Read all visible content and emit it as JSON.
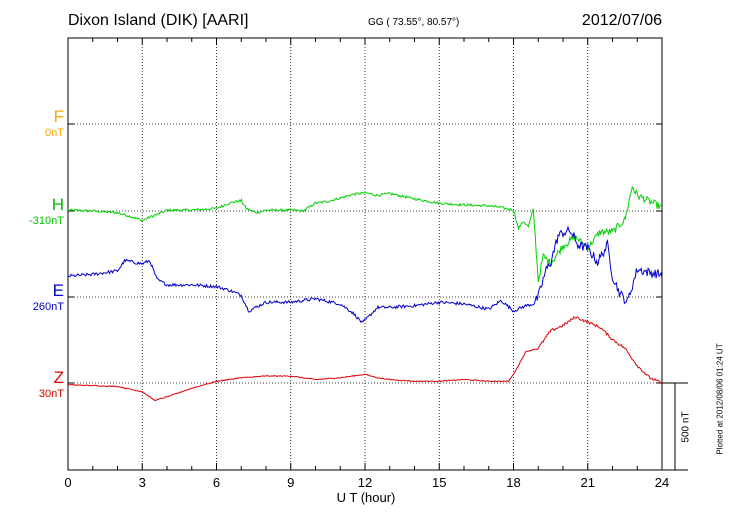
{
  "header": {
    "title": "Dixon Island (DIK)  [AARI]",
    "coords": "GG ( 73.55°,  80.57°)",
    "date": "2012/07/06"
  },
  "components": [
    {
      "letter": "F",
      "baseline": "0nT",
      "color": "#ffa500"
    },
    {
      "letter": "H",
      "baseline": "-310nT",
      "color": "#00c000"
    },
    {
      "letter": "E",
      "baseline": "260nT",
      "color": "#0000cc"
    },
    {
      "letter": "Z",
      "baseline": "30nT",
      "color": "#dd0000"
    }
  ],
  "scale_bar": {
    "label": "500 nT",
    "value_nT": 500
  },
  "plotted": "Plotted at 2012/08/06 01:24 UT",
  "chart_data": {
    "type": "line",
    "title": "Dixon Island (DIK)  [AARI]",
    "xlabel": "U T (hour)",
    "xlim": [
      0,
      24
    ],
    "xticks": [
      "0",
      "3",
      "6",
      "9",
      "12",
      "15",
      "18",
      "21",
      "24"
    ],
    "grid": true,
    "y_unit": "nT (deviation from baseline)",
    "series": [
      {
        "name": "H",
        "baseline": "-310nT",
        "color": "#00d000",
        "x": [
          0,
          1,
          2,
          2.5,
          3,
          3.3,
          3.6,
          4,
          5,
          6,
          6.5,
          7,
          7.2,
          7.6,
          8,
          9,
          9.5,
          10,
          10.5,
          11,
          11.5,
          12,
          12.5,
          13,
          13.5,
          14,
          15,
          16,
          17,
          17.5,
          18,
          18.2,
          18.4,
          18.6,
          18.8,
          19,
          19.2,
          19.5,
          20,
          20.5,
          21,
          21.5,
          22,
          22.5,
          22.8,
          23,
          23.5,
          24
        ],
        "values": [
          5,
          0,
          -10,
          -30,
          -55,
          -35,
          -20,
          5,
          5,
          15,
          45,
          60,
          15,
          -10,
          5,
          5,
          0,
          45,
          55,
          75,
          95,
          105,
          90,
          100,
          85,
          70,
          45,
          35,
          30,
          20,
          5,
          -100,
          -60,
          -90,
          10,
          -400,
          -260,
          -300,
          -200,
          -150,
          -210,
          -120,
          -120,
          -50,
          140,
          90,
          55,
          20
        ]
      },
      {
        "name": "E",
        "baseline": "260nT",
        "color": "#0000cc",
        "x": [
          0,
          1,
          2,
          2.3,
          3,
          3.3,
          3.6,
          4,
          5,
          6,
          6.5,
          7,
          7.3,
          8,
          9,
          10,
          11,
          11.5,
          11.9,
          12.5,
          13,
          14,
          15,
          16,
          17,
          17.5,
          18,
          18.5,
          18.8,
          19,
          19.3,
          19.5,
          19.8,
          20,
          20.3,
          20.6,
          21,
          21.4,
          21.8,
          22,
          22.3,
          22.6,
          23,
          23.5,
          24
        ],
        "values": [
          120,
          130,
          150,
          210,
          190,
          210,
          100,
          70,
          70,
          60,
          40,
          10,
          -80,
          -30,
          -30,
          -10,
          -40,
          -90,
          -150,
          -60,
          -60,
          -50,
          -30,
          -40,
          -70,
          -20,
          -80,
          -50,
          -40,
          0,
          150,
          200,
          350,
          370,
          380,
          300,
          280,
          200,
          300,
          120,
          20,
          -30,
          160,
          140,
          130
        ]
      },
      {
        "name": "Z",
        "baseline": "30nT",
        "color": "#dd0000",
        "x": [
          0,
          2,
          3,
          3.5,
          4,
          5,
          6,
          7,
          8,
          9,
          10,
          11,
          12,
          12.5,
          13,
          14,
          15,
          16,
          17,
          17.8,
          18,
          18.5,
          19,
          19.5,
          20,
          20.5,
          21,
          21.5,
          22,
          22.5,
          23,
          23.5,
          24
        ],
        "values": [
          -10,
          -20,
          -50,
          -100,
          -80,
          -30,
          10,
          30,
          40,
          40,
          20,
          30,
          50,
          30,
          20,
          10,
          10,
          20,
          10,
          10,
          50,
          180,
          200,
          300,
          330,
          380,
          350,
          320,
          250,
          200,
          100,
          30,
          0
        ]
      }
    ]
  }
}
